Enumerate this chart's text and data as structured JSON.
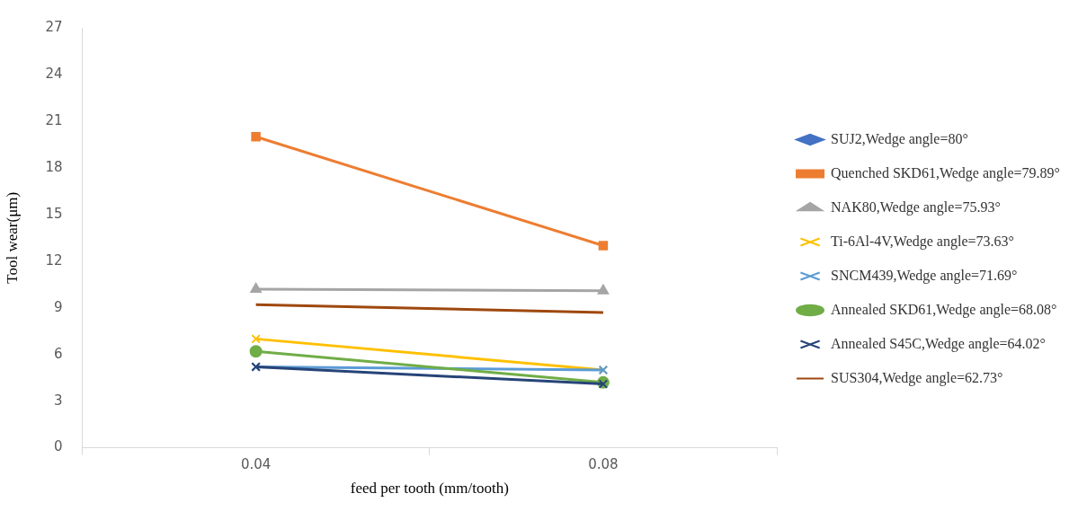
{
  "chart_data": {
    "type": "line",
    "xlabel": "feed per tooth (mm/tooth)",
    "ylabel": "Tool wear(μm)",
    "categories": [
      "0.04",
      "0.08"
    ],
    "ylim": [
      0,
      27
    ],
    "yticks": [
      0,
      3,
      6,
      9,
      12,
      15,
      18,
      21,
      24,
      27
    ],
    "grid": false,
    "legend": "right",
    "series": [
      {
        "name": "SUJ2,Wedge angle=80°",
        "color": "#4472c4",
        "marker": "diamond",
        "values": [
          null,
          null
        ]
      },
      {
        "name": "Quenched SKD61,Wedge angle=79.89°",
        "color": "#ed7d31",
        "marker": "square",
        "values": [
          20,
          13
        ]
      },
      {
        "name": "NAK80,Wedge angle=75.93°",
        "color": "#a5a5a5",
        "marker": "triangle",
        "values": [
          10.2,
          10.1
        ]
      },
      {
        "name": "Ti-6Al-4V,Wedge angle=73.63°",
        "color": "#ffc000",
        "marker": "cross",
        "values": [
          7,
          5
        ]
      },
      {
        "name": "SNCM439,Wedge angle=71.69°",
        "color": "#5b9bd5",
        "marker": "cross",
        "values": [
          5.2,
          5
        ]
      },
      {
        "name": "Annealed SKD61,Wedge angle=68.08°",
        "color": "#70ad47",
        "marker": "circle",
        "values": [
          6.2,
          4.2
        ]
      },
      {
        "name": "Annealed S45C,Wedge angle=64.02°",
        "color": "#264478",
        "marker": "cross",
        "values": [
          5.2,
          4.1
        ]
      },
      {
        "name": "SUS304,Wedge angle=62.73°",
        "color": "#9e480e",
        "marker": "none",
        "values": [
          9.2,
          8.7
        ]
      }
    ]
  }
}
